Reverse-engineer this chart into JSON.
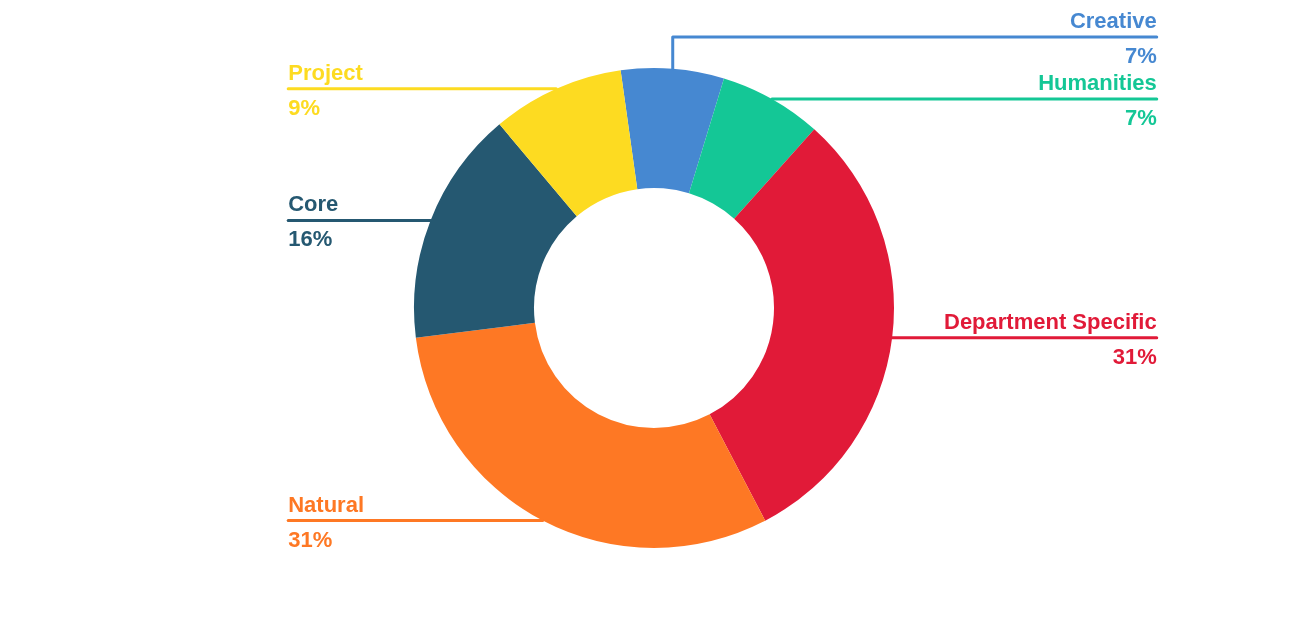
{
  "chart_data": {
    "type": "donut",
    "categories": [
      "Creative",
      "Humanities",
      "Department Specific",
      "Natural",
      "Core",
      "Project"
    ],
    "values": [
      7,
      7,
      31,
      31,
      16,
      9
    ],
    "colors": [
      "#4688d1",
      "#14c796",
      "#e11a38",
      "#fe7824",
      "#255871",
      "#fddb21"
    ],
    "value_labels": [
      "7%",
      "7%",
      "31%",
      "31%",
      "16%",
      "9%"
    ],
    "legend": false
  }
}
